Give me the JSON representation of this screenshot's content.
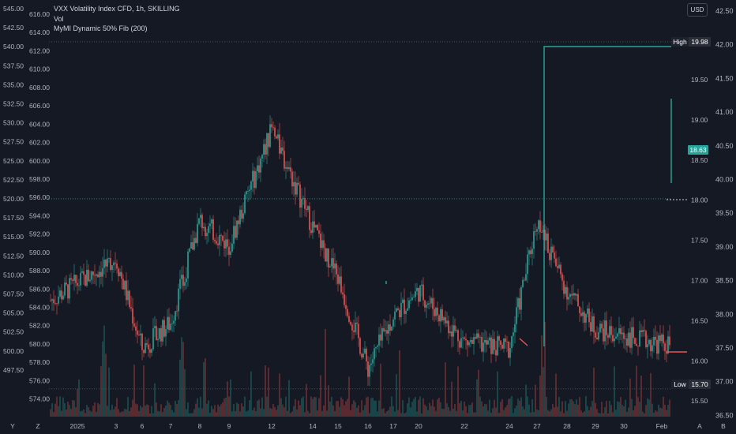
{
  "legend": {
    "title": "VXX Volatility Index CFD, 1h, SKILLING",
    "line2": "Vol",
    "line3": "MyMI Dynamic 50% Fib (200)"
  },
  "currency_button": "USD",
  "colors": {
    "background": "#151924",
    "up": "#26a69a",
    "down": "#ef5350",
    "grid": "#2a2e39"
  },
  "chart_data": {
    "type": "candlestick",
    "title": "VXX Volatility Index CFD, 1h, SKILLING",
    "x_ticks": [
      "2025",
      "3",
      "6",
      "7",
      "8",
      "9",
      "12",
      "14",
      "15",
      "16",
      "17",
      "20",
      "22",
      "24",
      "27",
      "28",
      "29",
      "30",
      "Feb"
    ],
    "axes": {
      "left_outer": {
        "ticks": [
          "545.00",
          "542.50",
          "540.00",
          "537.50",
          "535.00",
          "532.50",
          "530.00",
          "527.50",
          "525.00",
          "522.50",
          "520.00",
          "517.50",
          "515.00",
          "512.50",
          "510.00",
          "507.50",
          "505.00",
          "502.50",
          "500.00",
          "497.50"
        ],
        "range": [
          497.5,
          545.0
        ]
      },
      "left_inner": {
        "ticks": [
          "616.00",
          "614.00",
          "612.00",
          "610.00",
          "608.00",
          "606.00",
          "604.00",
          "602.00",
          "600.00",
          "598.00",
          "596.00",
          "594.00",
          "592.00",
          "590.00",
          "588.00",
          "586.00",
          "584.00",
          "582.00",
          "580.00",
          "578.00",
          "576.00",
          "574.00"
        ],
        "range": [
          574,
          616
        ]
      },
      "right_inner": {
        "ticks": [
          "19.50",
          "19.00",
          "18.50",
          "18.00",
          "17.50",
          "17.00",
          "16.50",
          "16.00",
          "15.50"
        ],
        "range": [
          15.5,
          19.98
        ]
      },
      "right_outer": {
        "ticks": [
          "42.50",
          "42.00",
          "41.50",
          "41.00",
          "40.50",
          "40.00",
          "39.50",
          "39.00",
          "38.50",
          "38.00",
          "37.50",
          "37.00",
          "36.50"
        ],
        "range": [
          36.5,
          42.5
        ]
      }
    },
    "high": {
      "label": "High",
      "value": "19.98"
    },
    "low": {
      "label": "Low",
      "value": "15.70"
    },
    "last_price": "18.63",
    "series": [
      {
        "name": "VXX Volatility Index CFD",
        "type": "candlestick",
        "unit": "right_inner",
        "waypoints": [
          {
            "x": "2025",
            "y": 17.05
          },
          {
            "x": "3",
            "y": 17.7
          },
          {
            "x": "6",
            "y": 16.3
          },
          {
            "x": "7",
            "y": 16.7
          },
          {
            "x": "8",
            "y": 18.3
          },
          {
            "x": "9",
            "y": 17.9
          },
          {
            "x": "12",
            "y": 19.7
          },
          {
            "x": "14",
            "y": 18.2
          },
          {
            "x": "15",
            "y": 17.4
          },
          {
            "x": "16",
            "y": 16.0
          },
          {
            "x": "17",
            "y": 16.8
          },
          {
            "x": "20",
            "y": 17.2
          },
          {
            "x": "22",
            "y": 16.4
          },
          {
            "x": "24",
            "y": 16.3
          },
          {
            "x": "27",
            "y": 18.3
          },
          {
            "x": "28",
            "y": 17.2
          },
          {
            "x": "29",
            "y": 16.6
          },
          {
            "x": "30",
            "y": 16.5
          },
          {
            "x": "Feb",
            "y": 16.35
          }
        ]
      },
      {
        "name": "MyMI Dynamic 50% Fib (200)",
        "type": "step",
        "unit": "right_inner",
        "values": [
          {
            "x": "16",
            "y": 17.0
          },
          {
            "x": "27",
            "y": 19.98
          },
          {
            "x": "Feb",
            "y": 16.1
          }
        ]
      },
      {
        "name": "Vol",
        "type": "bar",
        "unit": "volume"
      }
    ],
    "grid": false,
    "legend_position": "top-left"
  }
}
